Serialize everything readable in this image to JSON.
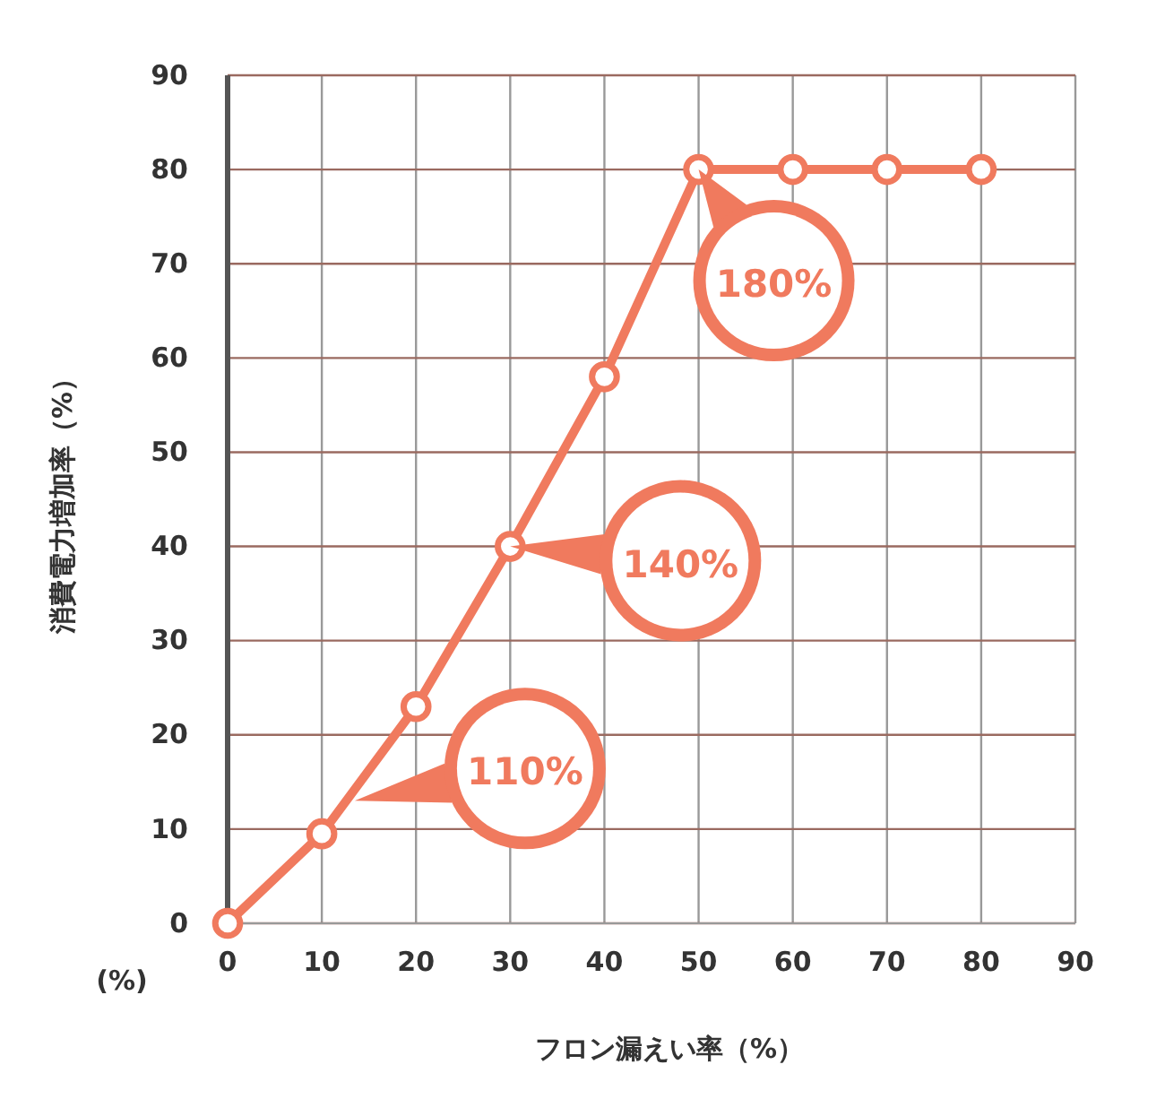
{
  "chart_data": {
    "type": "line",
    "xlabel": "フロン漏えい率（%）",
    "ylabel": "消費電力増加率（%）",
    "x": [
      0,
      10,
      20,
      30,
      40,
      50,
      60,
      70,
      80
    ],
    "series": [
      {
        "color": "#f07a5e",
        "values": [
          0,
          9.5,
          23,
          40,
          58,
          80,
          80,
          80,
          80
        ]
      }
    ],
    "xlim": [
      0,
      90
    ],
    "ylim": [
      0,
      90
    ],
    "xticks": [
      0,
      10,
      20,
      30,
      40,
      50,
      60,
      70,
      80,
      90
    ],
    "yticks": [
      0,
      10,
      20,
      30,
      40,
      50,
      60,
      70,
      80,
      90
    ],
    "grid": true,
    "marker": "circle",
    "line_style": "solid",
    "annotations": [
      "(%)",
      {
        "text": "110%",
        "x": 13.5,
        "y": 13
      },
      {
        "text": "140%",
        "x": 30,
        "y": 40
      },
      {
        "text": "180%",
        "x": 50,
        "y": 80
      }
    ]
  }
}
